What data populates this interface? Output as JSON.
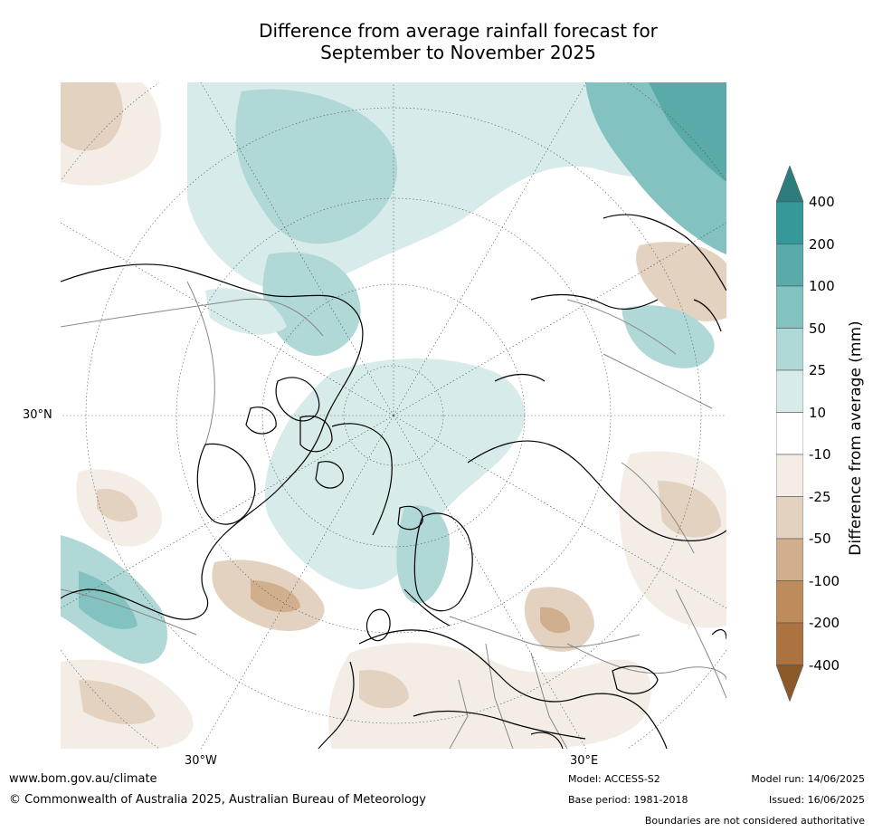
{
  "title": {
    "line1": "Difference from average rainfall forecast for",
    "line2": "September to November 2025"
  },
  "map_labels": {
    "lat": "30°N",
    "lon_west": "30°W",
    "lon_east": "30°E"
  },
  "legend": {
    "label": "Difference from average (mm)",
    "ticks": [
      "400",
      "200",
      "100",
      "50",
      "25",
      "10",
      "-10",
      "-25",
      "-50",
      "-100",
      "-200",
      "-400"
    ],
    "colors": [
      "#2b7e7b",
      "#35999a",
      "#5aaaa9",
      "#82c2c1",
      "#afd8d7",
      "#d6ebea",
      "#ffffff",
      "#f3ede6",
      "#e4d2c1",
      "#d1af8d",
      "#bd8b5c",
      "#ac7341",
      "#8c5a28"
    ]
  },
  "footer": {
    "website": "www.bom.gov.au/climate",
    "copyright": "© Commonwealth of Australia 2025, Australian Bureau of Meteorology",
    "model": "Model: ACCESS-S2",
    "base_period": "Base period: 1981-2018",
    "model_run": "Model run: 14/06/2025",
    "issued": "Issued: 16/06/2025",
    "disclaimer": "Boundaries are not considered authoritative"
  }
}
